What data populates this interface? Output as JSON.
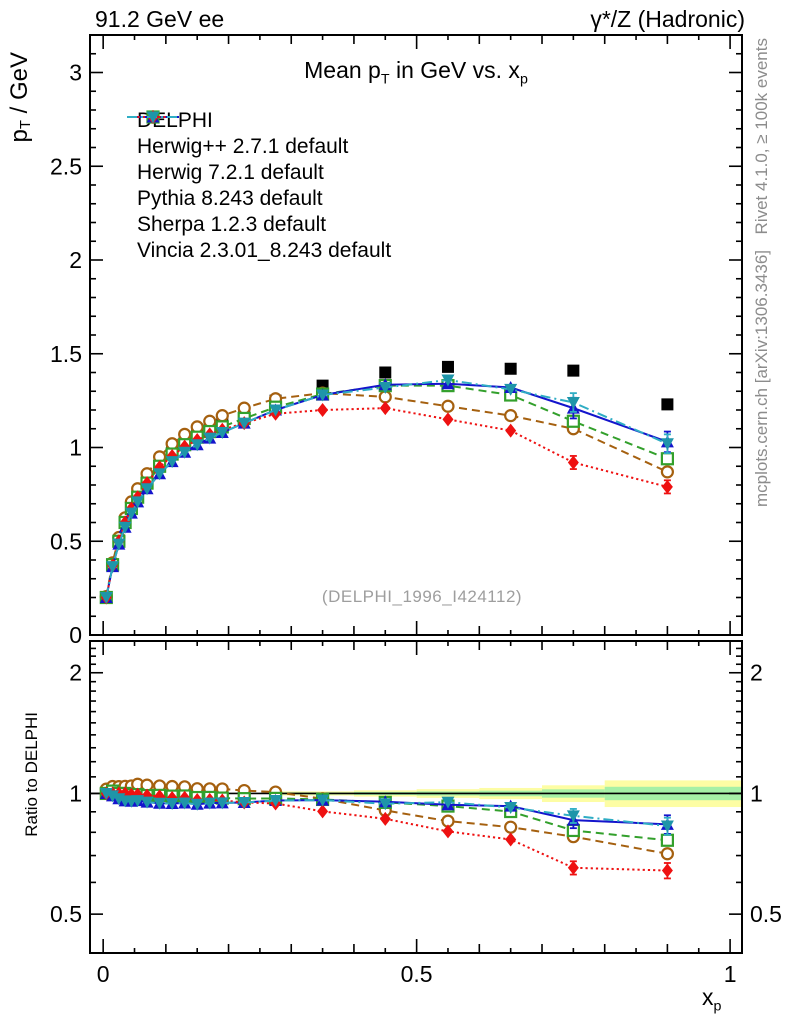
{
  "header": {
    "left_title": "91.2 GeV ee",
    "right_title": "γ*/Z (Hadronic)"
  },
  "side_notes": {
    "top": "Rivet 4.1.0, ≥ 100k events",
    "bottom": "mcplots.cern.ch [arXiv:1306.3436]"
  },
  "watermark": "(DELPHI_1996_I424112)",
  "colors": {
    "band_yellow": "#fdfda4",
    "band_green": "#a6f0a6",
    "frame": "#000000",
    "note_gray": "#8c8c8c",
    "watermark_gray": "#9e9e9e"
  },
  "chart_data": {
    "type": "line",
    "title_parts": [
      {
        "t": "Mean p"
      },
      {
        "t": "T",
        "sub": true
      },
      {
        "t": " in GeV vs. x"
      },
      {
        "t": "p",
        "sub": true
      }
    ],
    "xlabel_parts": [
      {
        "t": "x"
      },
      {
        "t": "p",
        "sub": true
      }
    ],
    "ylabel_parts": [
      {
        "t": "p"
      },
      {
        "t": "T",
        "sub": true
      },
      {
        "t": " / GeV"
      }
    ],
    "ratio_ylabel": "Ratio to DELPHI",
    "xlim": [
      -0.021,
      1.019
    ],
    "ylim": [
      0,
      3.2
    ],
    "ratio_ylim": [
      0.4,
      2.4
    ],
    "ratio_scale": "log",
    "grid": false,
    "legend_position": "top-left-inside",
    "x_major_ticks": [
      0,
      0.5,
      1
    ],
    "x_tick_labels": [
      "0",
      "0.5",
      "1"
    ],
    "y_major_ticks": [
      0,
      0.5,
      1,
      1.5,
      2,
      2.5,
      3
    ],
    "y_tick_labels": [
      "0",
      "0.5",
      "1",
      "1.5",
      "2",
      "2.5",
      "3"
    ],
    "ratio_major_ticks": [
      0.5,
      1,
      2
    ],
    "ratio_tick_labels": [
      "0.5",
      "1",
      "2"
    ],
    "x": [
      0.005,
      0.015,
      0.025,
      0.035,
      0.045,
      0.055,
      0.07,
      0.09,
      0.11,
      0.13,
      0.15,
      0.17,
      0.19,
      0.225,
      0.275,
      0.35,
      0.45,
      0.55,
      0.65,
      0.75,
      0.9
    ],
    "series": [
      {
        "name": "DELPHI",
        "color": "#000000",
        "marker": "square-filled",
        "line": "none",
        "reference": true,
        "err_last": 0,
        "values": [
          0.2,
          0.37,
          0.5,
          0.6,
          0.68,
          0.74,
          0.82,
          0.91,
          0.98,
          1.03,
          1.08,
          1.11,
          1.14,
          1.19,
          1.25,
          1.33,
          1.4,
          1.43,
          1.42,
          1.41,
          1.23
        ]
      },
      {
        "name": "Herwig++ 2.7.1 default",
        "color": "#a5600f",
        "marker": "circle-open",
        "line": "dashed",
        "reference": false,
        "err_last": 0.02,
        "values": [
          0.205,
          0.385,
          0.52,
          0.625,
          0.71,
          0.78,
          0.86,
          0.95,
          1.02,
          1.07,
          1.11,
          1.14,
          1.17,
          1.21,
          1.26,
          1.29,
          1.27,
          1.22,
          1.17,
          1.1,
          0.87
        ]
      },
      {
        "name": "Herwig 7.2.1 default",
        "color": "#33a02c",
        "marker": "square-open",
        "line": "dashed",
        "reference": false,
        "err_last": 0.025,
        "values": [
          0.2,
          0.375,
          0.5,
          0.6,
          0.675,
          0.735,
          0.81,
          0.9,
          0.965,
          1.015,
          1.055,
          1.085,
          1.11,
          1.155,
          1.215,
          1.285,
          1.33,
          1.33,
          1.28,
          1.14,
          0.94
        ]
      },
      {
        "name": "Pythia 8.243 default",
        "color": "#1414cc",
        "marker": "triangle-up",
        "line": "solid",
        "reference": false,
        "err_last": 0.055,
        "values": [
          0.2,
          0.365,
          0.485,
          0.575,
          0.65,
          0.71,
          0.78,
          0.86,
          0.925,
          0.975,
          1.015,
          1.05,
          1.08,
          1.13,
          1.2,
          1.28,
          1.335,
          1.34,
          1.32,
          1.21,
          1.03
        ]
      },
      {
        "name": "Sherpa 1.2.3 default",
        "color": "#ee1111",
        "marker": "diamond",
        "line": "dotted",
        "reference": false,
        "err_last": 0.035,
        "values": [
          0.2,
          0.37,
          0.5,
          0.6,
          0.675,
          0.735,
          0.81,
          0.895,
          0.955,
          1.005,
          1.04,
          1.07,
          1.095,
          1.13,
          1.18,
          1.2,
          1.21,
          1.15,
          1.09,
          0.92,
          0.79
        ]
      },
      {
        "name": "Vincia 2.3.01_8.243 default",
        "color": "#2fadc4",
        "marker_color": "#1e95a9",
        "marker": "triangle-down",
        "line": "dashdot",
        "reference": false,
        "err_last": 0.05,
        "values": [
          0.2,
          0.365,
          0.485,
          0.575,
          0.65,
          0.71,
          0.78,
          0.86,
          0.925,
          0.975,
          1.015,
          1.05,
          1.08,
          1.13,
          1.2,
          1.28,
          1.32,
          1.36,
          1.31,
          1.24,
          1.02
        ]
      }
    ],
    "uncertainty_bands": {
      "yellow": [
        [
          0.275,
          0.4,
          0.988,
          1.012
        ],
        [
          0.4,
          0.5,
          0.982,
          1.018
        ],
        [
          0.5,
          0.6,
          0.975,
          1.025
        ],
        [
          0.6,
          0.7,
          0.968,
          1.032
        ],
        [
          0.7,
          0.8,
          0.952,
          1.048
        ],
        [
          0.8,
          1.019,
          0.925,
          1.078
        ]
      ],
      "green": [
        [
          0.275,
          0.4,
          0.994,
          1.006
        ],
        [
          0.4,
          0.5,
          0.991,
          1.009
        ],
        [
          0.5,
          0.6,
          0.988,
          1.012
        ],
        [
          0.6,
          0.7,
          0.984,
          1.016
        ],
        [
          0.7,
          0.8,
          0.976,
          1.024
        ],
        [
          0.8,
          1.019,
          0.962,
          1.039
        ]
      ]
    }
  }
}
